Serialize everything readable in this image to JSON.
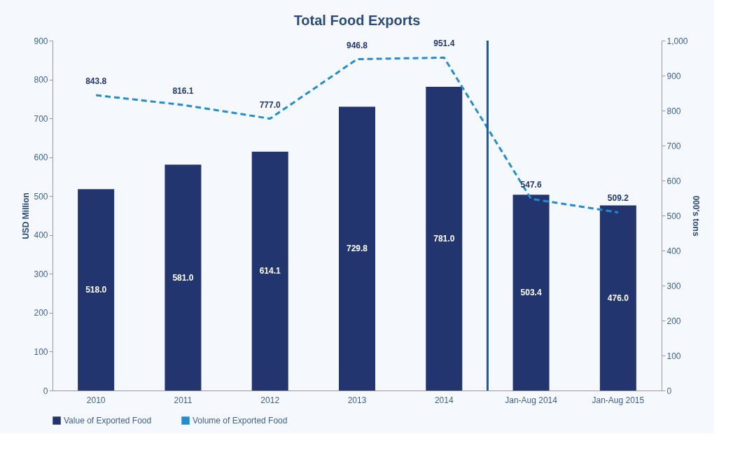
{
  "chart_data": {
    "type": "bar",
    "title": "Total  Food Exports",
    "ylabel": "USD Million",
    "y2label": "000's tons",
    "categories": [
      "2010",
      "2011",
      "2012",
      "2013",
      "2014",
      "Jan-Aug 2014",
      "Jan-Aug 2015"
    ],
    "series": [
      {
        "name": "Value of Exported Food",
        "color": "#22356e",
        "values": [
          518.0,
          581.0,
          614.1,
          729.8,
          781.0,
          503.4,
          476.0
        ],
        "value_labels": [
          "518.0",
          "581.0",
          "614.1",
          "729.8",
          "781.0",
          "503.4",
          "476.0"
        ]
      },
      {
        "name": "Volume of Exported Food",
        "type": "line",
        "axis": "y2",
        "line_style": "dashed",
        "color": "#1f8fd3",
        "values": [
          843.8,
          816.1,
          777.0,
          946.8,
          951.4,
          547.6,
          509.2
        ],
        "value_labels": [
          "843.8",
          "816.1",
          "777.0",
          "946.8",
          "951.4",
          "547.6",
          "509.2"
        ]
      }
    ],
    "ylim": [
      0,
      900
    ],
    "yticks": [
      0,
      100,
      200,
      300,
      400,
      500,
      600,
      700,
      800,
      900
    ],
    "y2lim": [
      0,
      1000
    ],
    "y2ticks": [
      0,
      100,
      200,
      300,
      400,
      500,
      600,
      700,
      800,
      900,
      {
        "value": 1000,
        "label": "1,000"
      }
    ],
    "ref_lines": [
      {
        "axis": "x",
        "value": "Jan-Aug 2014",
        "color": "#0a5eaa"
      }
    ],
    "grid": false,
    "legend": "bottom",
    "marker": "none"
  }
}
